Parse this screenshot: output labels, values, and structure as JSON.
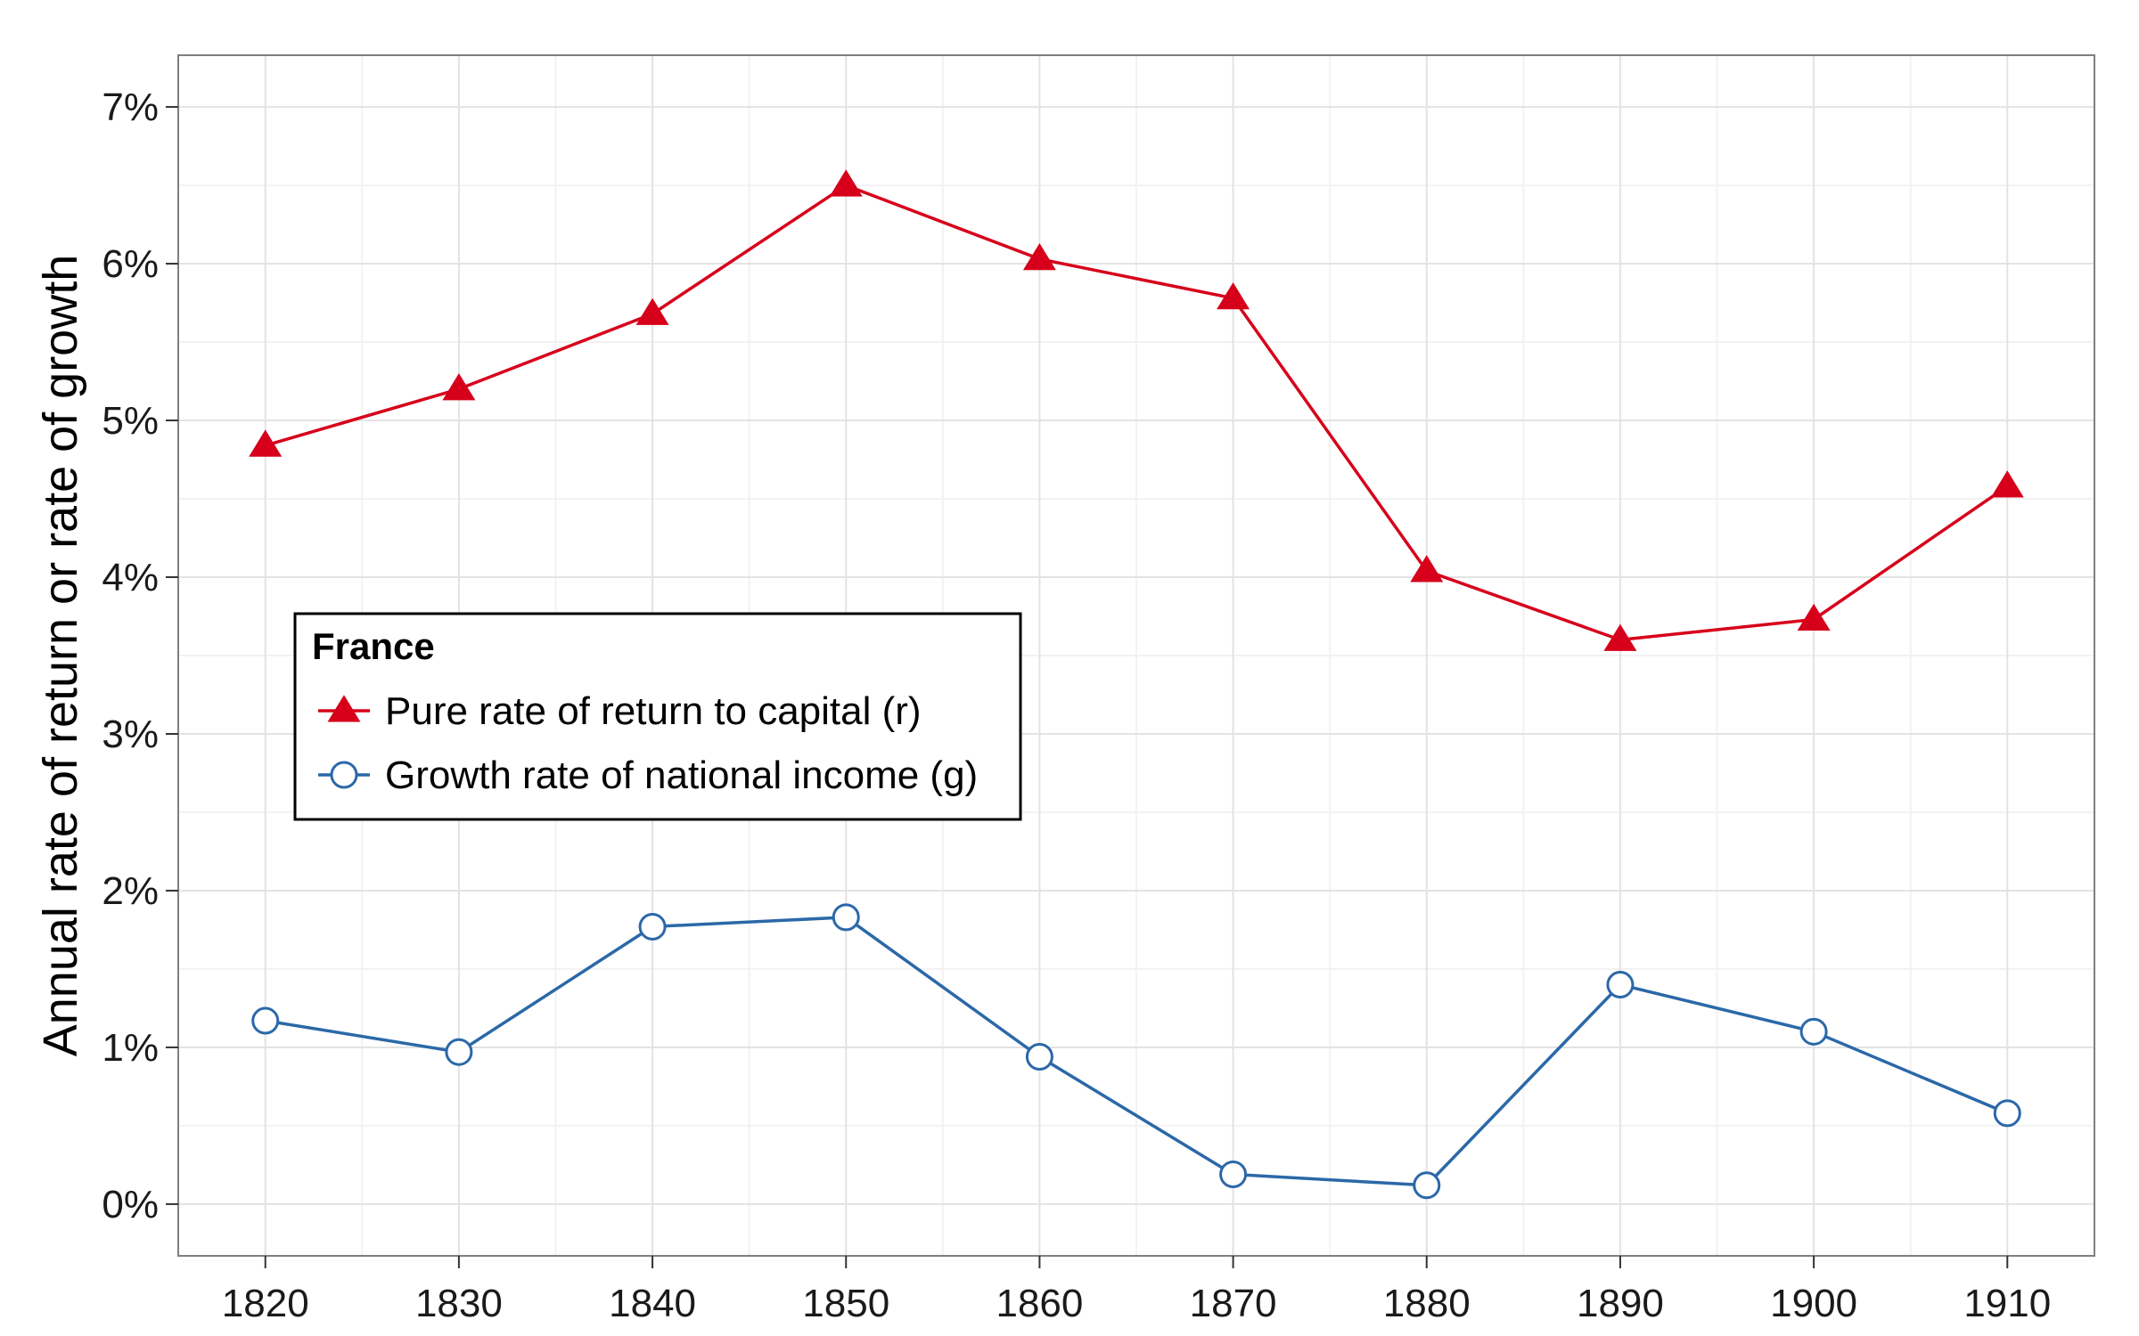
{
  "chart_data": {
    "type": "line",
    "title": "",
    "xlabel": "",
    "ylabel": "Annual rate of return or rate of growth",
    "x": [
      1820,
      1830,
      1840,
      1850,
      1860,
      1870,
      1880,
      1890,
      1900,
      1910
    ],
    "xlim": [
      1815.5,
      1914.5
    ],
    "ylim": [
      -0.33,
      7.33
    ],
    "x_ticks": [
      1820,
      1830,
      1840,
      1850,
      1860,
      1870,
      1880,
      1890,
      1900,
      1910
    ],
    "x_tick_labels": [
      "1820",
      "1830",
      "1840",
      "1850",
      "1860",
      "1870",
      "1880",
      "1890",
      "1900",
      "1910"
    ],
    "y_ticks": [
      0,
      1,
      2,
      3,
      4,
      5,
      6,
      7
    ],
    "y_tick_labels": [
      "0%",
      "1%",
      "2%",
      "3%",
      "4%",
      "5%",
      "6%",
      "7%"
    ],
    "grid": true,
    "legend": {
      "title": "France",
      "placement": "left-middle"
    },
    "series": [
      {
        "name": "Pure rate of return to capital (r)",
        "values": [
          4.84,
          5.2,
          5.68,
          6.5,
          6.03,
          5.78,
          4.04,
          3.6,
          3.73,
          4.58
        ],
        "color": "#d7001b",
        "marker": "triangle-filled"
      },
      {
        "name": "Growth rate of national income (g)",
        "values": [
          1.17,
          0.97,
          1.77,
          1.83,
          0.94,
          0.19,
          0.12,
          1.4,
          1.1,
          0.58
        ],
        "color": "#2b68a8",
        "marker": "circle-open"
      }
    ]
  }
}
